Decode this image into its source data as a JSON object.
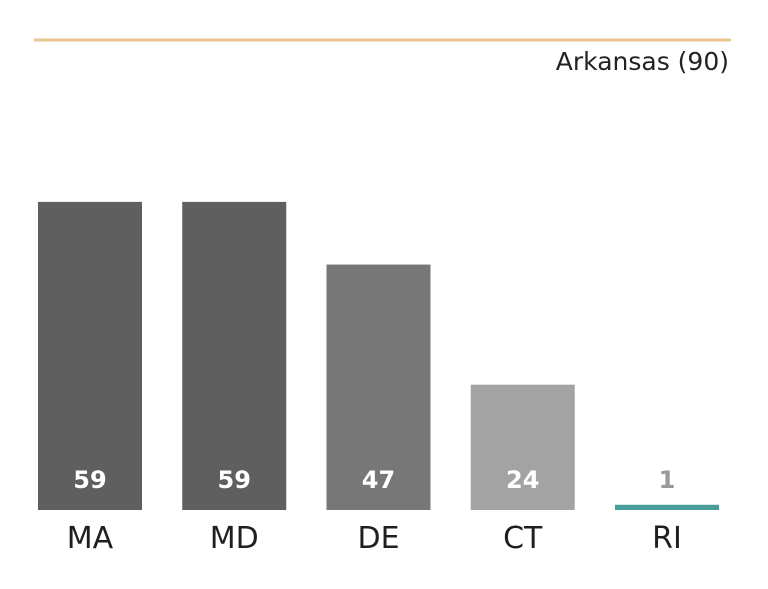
{
  "chart_data": {
    "type": "bar",
    "categories": [
      "MA",
      "MD",
      "DE",
      "CT",
      "RI"
    ],
    "values": [
      59,
      59,
      47,
      24,
      1
    ],
    "bar_colors": [
      "#5f5f5f",
      "#5f5f5f",
      "#777777",
      "#a3a3a3",
      "#4a9e9a"
    ],
    "label_colors": [
      "#ffffff",
      "#ffffff",
      "#ffffff",
      "#ffffff",
      "#999999"
    ],
    "reference_line": {
      "label": "Arkansas (90)",
      "value": 90,
      "color": "#eac68e"
    },
    "ylim": [
      0,
      90
    ],
    "grid": false,
    "title": "",
    "xlabel": "",
    "ylabel": ""
  }
}
